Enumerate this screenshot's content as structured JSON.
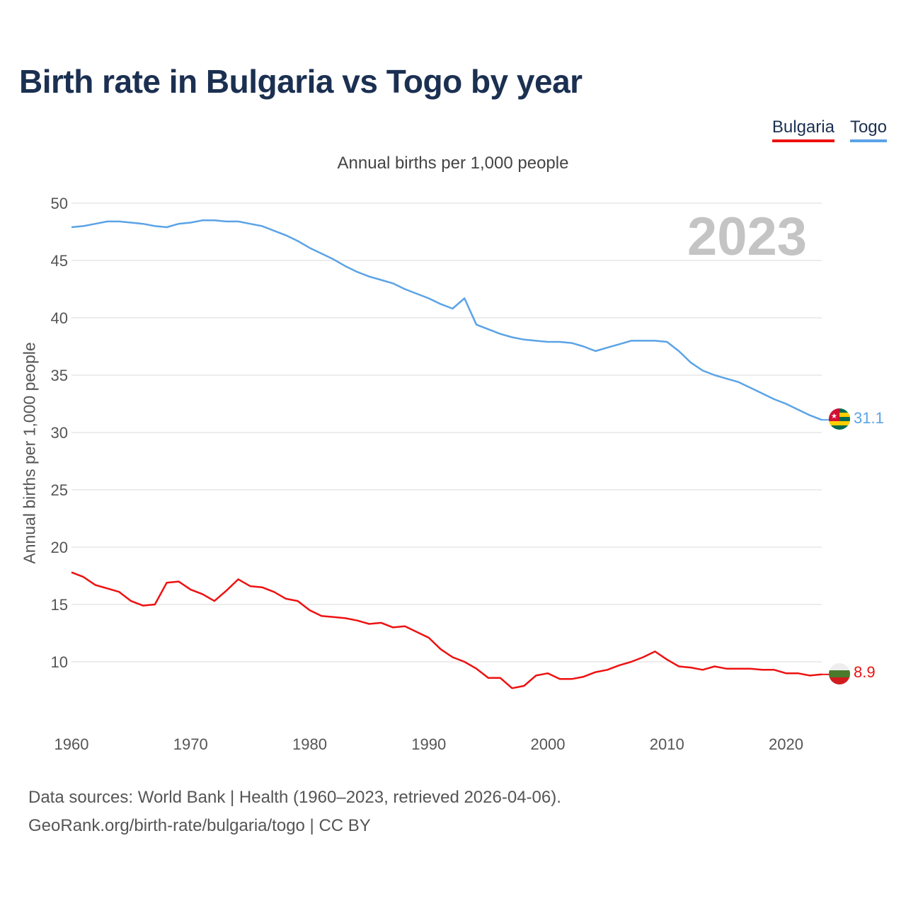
{
  "title": "Birth rate in Bulgaria vs Togo by year",
  "legend": [
    {
      "label": "Bulgaria",
      "color": "#ee1111"
    },
    {
      "label": "Togo",
      "color": "#5ba3e6"
    }
  ],
  "chart_data": {
    "type": "line",
    "title": "Annual births per 1,000 people",
    "xlabel": "",
    "ylabel": "Annual births per 1,000 people",
    "xlim": [
      1960,
      2023
    ],
    "ylim": [
      5,
      50
    ],
    "y_ticks": [
      10,
      15,
      20,
      25,
      30,
      35,
      40,
      45,
      50
    ],
    "x_ticks": [
      1960,
      1970,
      1980,
      1990,
      2000,
      2010,
      2020
    ],
    "year_label": "2023",
    "grid": true,
    "x": [
      1960,
      1961,
      1962,
      1963,
      1964,
      1965,
      1966,
      1967,
      1968,
      1969,
      1970,
      1971,
      1972,
      1973,
      1974,
      1975,
      1976,
      1977,
      1978,
      1979,
      1980,
      1981,
      1982,
      1983,
      1984,
      1985,
      1986,
      1987,
      1988,
      1989,
      1990,
      1991,
      1992,
      1993,
      1994,
      1995,
      1996,
      1997,
      1998,
      1999,
      2000,
      2001,
      2002,
      2003,
      2004,
      2005,
      2006,
      2007,
      2008,
      2009,
      2010,
      2011,
      2012,
      2013,
      2014,
      2015,
      2016,
      2017,
      2018,
      2019,
      2020,
      2021,
      2022,
      2023
    ],
    "series": [
      {
        "name": "Bulgaria",
        "color": "#ee1111",
        "end_label": "8.9",
        "values": [
          17.8,
          17.4,
          16.7,
          16.4,
          16.1,
          15.3,
          14.9,
          15.0,
          16.9,
          17.0,
          16.3,
          15.9,
          15.3,
          16.2,
          17.2,
          16.6,
          16.5,
          16.1,
          15.5,
          15.3,
          14.5,
          14.0,
          13.9,
          13.8,
          13.6,
          13.3,
          13.4,
          13.0,
          13.1,
          12.6,
          12.1,
          11.1,
          10.4,
          10.0,
          9.4,
          8.6,
          8.6,
          7.7,
          7.9,
          8.8,
          9.0,
          8.5,
          8.5,
          8.7,
          9.1,
          9.3,
          9.7,
          10.0,
          10.4,
          10.9,
          10.2,
          9.6,
          9.5,
          9.3,
          9.6,
          9.4,
          9.4,
          9.4,
          9.3,
          9.3,
          9.0,
          9.0,
          8.8,
          8.9
        ]
      },
      {
        "name": "Togo",
        "color": "#5ba3e6",
        "end_label": "31.1",
        "values": [
          47.9,
          48.0,
          48.2,
          48.4,
          48.4,
          48.3,
          48.2,
          48.0,
          47.9,
          48.2,
          48.3,
          48.5,
          48.5,
          48.4,
          48.4,
          48.2,
          48.0,
          47.6,
          47.2,
          46.7,
          46.1,
          45.6,
          45.1,
          44.5,
          44.0,
          43.6,
          43.3,
          43.0,
          42.5,
          42.1,
          41.7,
          41.2,
          40.8,
          41.7,
          39.4,
          39.0,
          38.6,
          38.3,
          38.1,
          38.0,
          37.9,
          37.9,
          37.8,
          37.5,
          37.1,
          37.4,
          37.7,
          38.0,
          38.0,
          38.0,
          37.9,
          37.1,
          36.1,
          35.4,
          35.0,
          34.7,
          34.4,
          33.9,
          33.4,
          32.9,
          32.5,
          32.0,
          31.5,
          31.1
        ]
      }
    ]
  },
  "footer": {
    "line1": "Data sources: World Bank | Health (1960–2023, retrieved 2026-04-06).",
    "line2": "GeoRank.org/birth-rate/bulgaria/togo | CC BY"
  }
}
